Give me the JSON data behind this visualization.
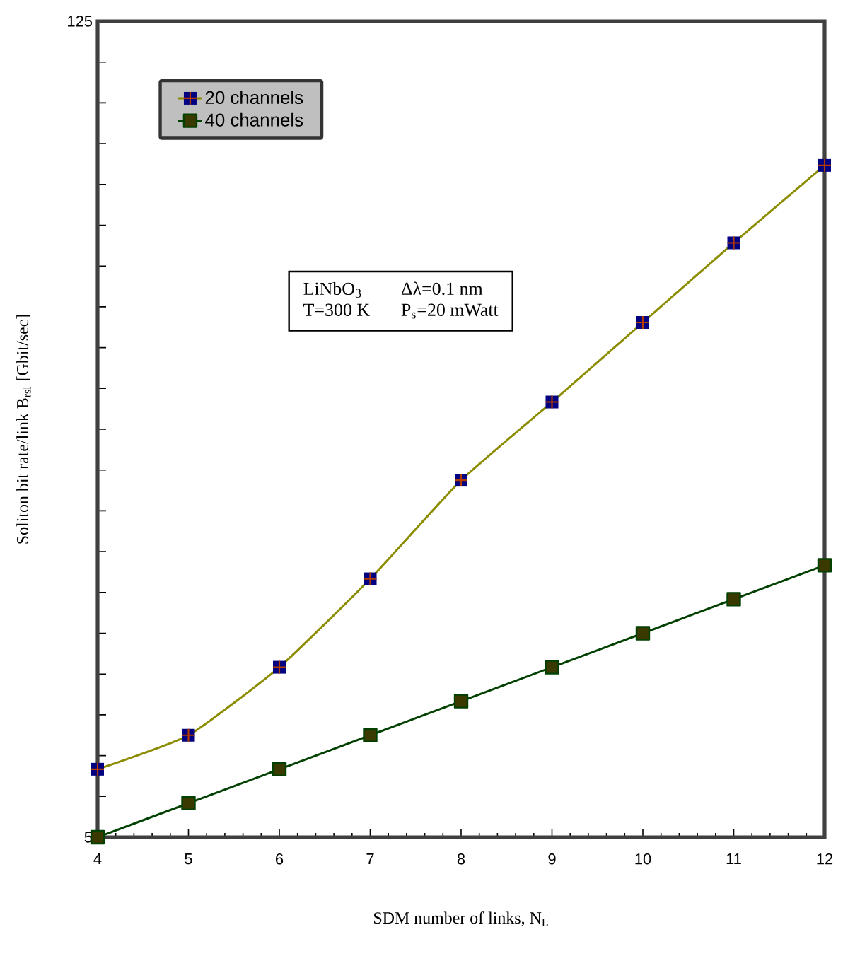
{
  "chart_data": {
    "type": "line",
    "xlabel": "SDM number of links, N$_{L}$",
    "ylabel": "Soliton bit rate/link B$_{rsl}$ [Gbit/sec]",
    "x": [
      4,
      5,
      6,
      7,
      8,
      9,
      10,
      11,
      12
    ],
    "series": [
      {
        "name": "20 channels",
        "color": "#8c8c00",
        "values": [
          15,
          20,
          30,
          43,
          57.5,
          69,
          80.7,
          92.4,
          103.8
        ]
      },
      {
        "name": "40 channels",
        "color": "#004000",
        "values": [
          5,
          10,
          15,
          20,
          25,
          30,
          35,
          40,
          45
        ]
      }
    ],
    "xlim": [
      4,
      12
    ],
    "xticks": [
      4,
      5,
      6,
      7,
      8,
      9,
      10,
      11,
      12
    ],
    "ylim": [
      5,
      125
    ],
    "yticks": [
      5,
      {
        "value": 11,
        "label": null
      },
      {
        "value": 17,
        "label": null
      },
      {
        "value": 23,
        "label": null
      },
      {
        "value": 29,
        "label": null
      },
      {
        "value": 35,
        "label": null
      },
      {
        "value": 41,
        "label": null
      },
      {
        "value": 47,
        "label": null
      },
      {
        "value": 53,
        "label": null
      },
      {
        "value": 59,
        "label": null
      },
      {
        "value": 65,
        "label": null
      },
      {
        "value": 71,
        "label": null
      },
      {
        "value": 77,
        "label": null
      },
      {
        "value": 83,
        "label": null
      },
      {
        "value": 89,
        "label": null
      },
      {
        "value": 95,
        "label": null
      },
      {
        "value": 101,
        "label": null
      },
      {
        "value": 107,
        "label": null
      },
      {
        "value": 113,
        "label": null
      },
      {
        "value": 119,
        "label": null
      },
      125
    ],
    "annotations": [
      "LiNbO$_{3}$",
      "Δλ=0.1 nm",
      "T=300 K",
      "P$_{s}$=20 mWatt"
    ],
    "legend": "top left",
    "grid": false,
    "marker": "square",
    "line_style": "solid"
  }
}
